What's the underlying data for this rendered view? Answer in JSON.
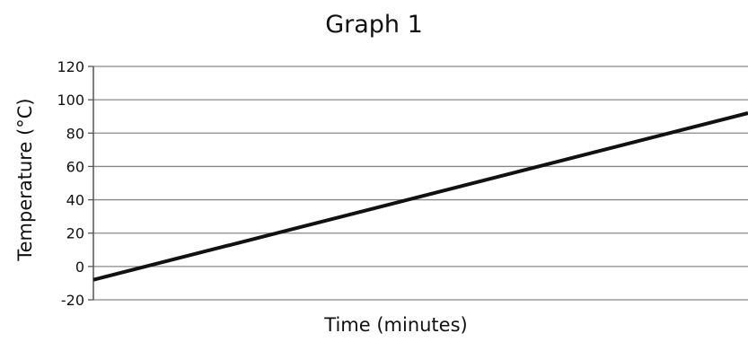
{
  "chart_data": {
    "type": "line",
    "title": "Graph 1",
    "xlabel": "Time (minutes)",
    "ylabel": "Temperature (°C)",
    "ylim": [
      -20,
      120
    ],
    "yticks": [
      "120",
      "100",
      "80",
      "60",
      "40",
      "20",
      "0",
      "-20"
    ],
    "xticks_shown": false,
    "grid": "horizontal",
    "series": [
      {
        "values": [
          -8,
          92
        ]
      }
    ],
    "colors": {
      "line": "#111111",
      "grid": "#888888",
      "axis": "#555555"
    }
  }
}
